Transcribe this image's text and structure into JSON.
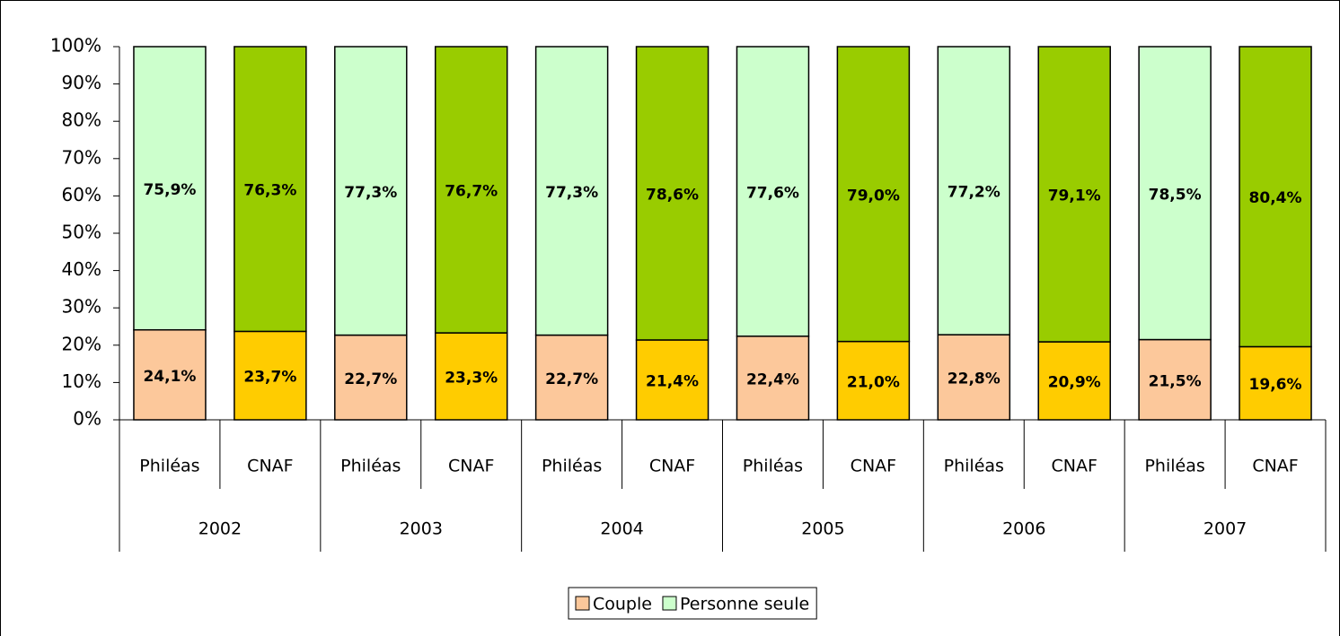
{
  "chart_data": {
    "type": "stacked_bar",
    "categories": [
      "Philéas",
      "CNAF",
      "Philéas",
      "CNAF",
      "Philéas",
      "CNAF",
      "Philéas",
      "CNAF",
      "Philéas",
      "CNAF",
      "Philéas",
      "CNAF"
    ],
    "groups": [
      "2002",
      "2003",
      "2004",
      "2005",
      "2006",
      "2007"
    ],
    "series": [
      {
        "name": "Couple",
        "color": "#fcc89b",
        "colors": [
          "#fcc89b",
          "#ffcc00",
          "#fcc89b",
          "#ffcc00",
          "#fcc89b",
          "#ffcc00",
          "#fcc89b",
          "#ffcc00",
          "#fcc89b",
          "#ffcc00",
          "#fcc89b",
          "#ffcc00"
        ],
        "values": [
          24.1,
          23.7,
          22.7,
          23.3,
          22.7,
          21.4,
          22.4,
          21.0,
          22.8,
          20.9,
          21.5,
          19.6
        ],
        "value_labels": [
          "24,1%",
          "23,7%",
          "22,7%",
          "23,3%",
          "22,7%",
          "21,4%",
          "22,4%",
          "21,0%",
          "22,8%",
          "20,9%",
          "21,5%",
          "19,6%"
        ]
      },
      {
        "name": "Personne seule",
        "color": "#ccffcc",
        "colors": [
          "#ccffcc",
          "#99cc00",
          "#ccffcc",
          "#99cc00",
          "#ccffcc",
          "#99cc00",
          "#ccffcc",
          "#99cc00",
          "#ccffcc",
          "#99cc00",
          "#ccffcc",
          "#99cc00"
        ],
        "values": [
          75.9,
          76.3,
          77.3,
          76.7,
          77.3,
          78.6,
          77.6,
          79.0,
          77.2,
          79.1,
          78.5,
          80.4
        ],
        "value_labels": [
          "75,9%",
          "76,3%",
          "77,3%",
          "76,7%",
          "77,3%",
          "78,6%",
          "77,6%",
          "79,0%",
          "77,2%",
          "79,1%",
          "78,5%",
          "80,4%"
        ]
      }
    ],
    "ylim": [
      0,
      100
    ],
    "yticks": [
      {
        "value": 0,
        "label": "0%"
      },
      {
        "value": 10,
        "label": "10%"
      },
      {
        "value": 20,
        "label": "20%"
      },
      {
        "value": 30,
        "label": "30%"
      },
      {
        "value": 40,
        "label": "40%"
      },
      {
        "value": 50,
        "label": "50%"
      },
      {
        "value": 60,
        "label": "60%"
      },
      {
        "value": 70,
        "label": "70%"
      },
      {
        "value": 80,
        "label": "80%"
      },
      {
        "value": 90,
        "label": "90%"
      },
      {
        "value": 100,
        "label": "100%"
      }
    ],
    "legend": "bottom"
  }
}
